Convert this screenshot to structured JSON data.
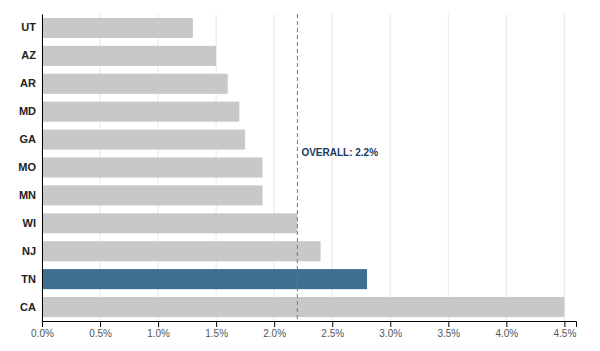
{
  "chart_data": {
    "type": "bar",
    "orientation": "horizontal",
    "categories": [
      "CA",
      "TN",
      "NJ",
      "WI",
      "MN",
      "MO",
      "GA",
      "MD",
      "AR",
      "AZ",
      "UT"
    ],
    "values": [
      0.045,
      0.028,
      0.024,
      0.022,
      0.019,
      0.019,
      0.0175,
      0.017,
      0.016,
      0.015,
      0.013
    ],
    "colors": [
      "#c8c8c8",
      "#3d7090",
      "#c8c8c8",
      "#c8c8c8",
      "#c8c8c8",
      "#c8c8c8",
      "#c8c8c8",
      "#c8c8c8",
      "#c8c8c8",
      "#c8c8c8",
      "#c8c8c8"
    ],
    "xlim": [
      0,
      0.046
    ],
    "xticks": [
      {
        "value": 0.0,
        "label": "0.0%"
      },
      {
        "value": 0.005,
        "label": "0.5%"
      },
      {
        "value": 0.01,
        "label": "1.0%"
      },
      {
        "value": 0.015,
        "label": "1.5%"
      },
      {
        "value": 0.02,
        "label": "2.0%"
      },
      {
        "value": 0.025,
        "label": "2.5%"
      },
      {
        "value": 0.03,
        "label": "3.0%"
      },
      {
        "value": 0.035,
        "label": "3.5%"
      },
      {
        "value": 0.04,
        "label": "4.0%"
      },
      {
        "value": 0.045,
        "label": "4.5%"
      }
    ],
    "grid": true,
    "annotations": [
      {
        "text": "OVERALL: 2.2%",
        "x": 0.022,
        "color": "#1a3a5c"
      }
    ]
  }
}
